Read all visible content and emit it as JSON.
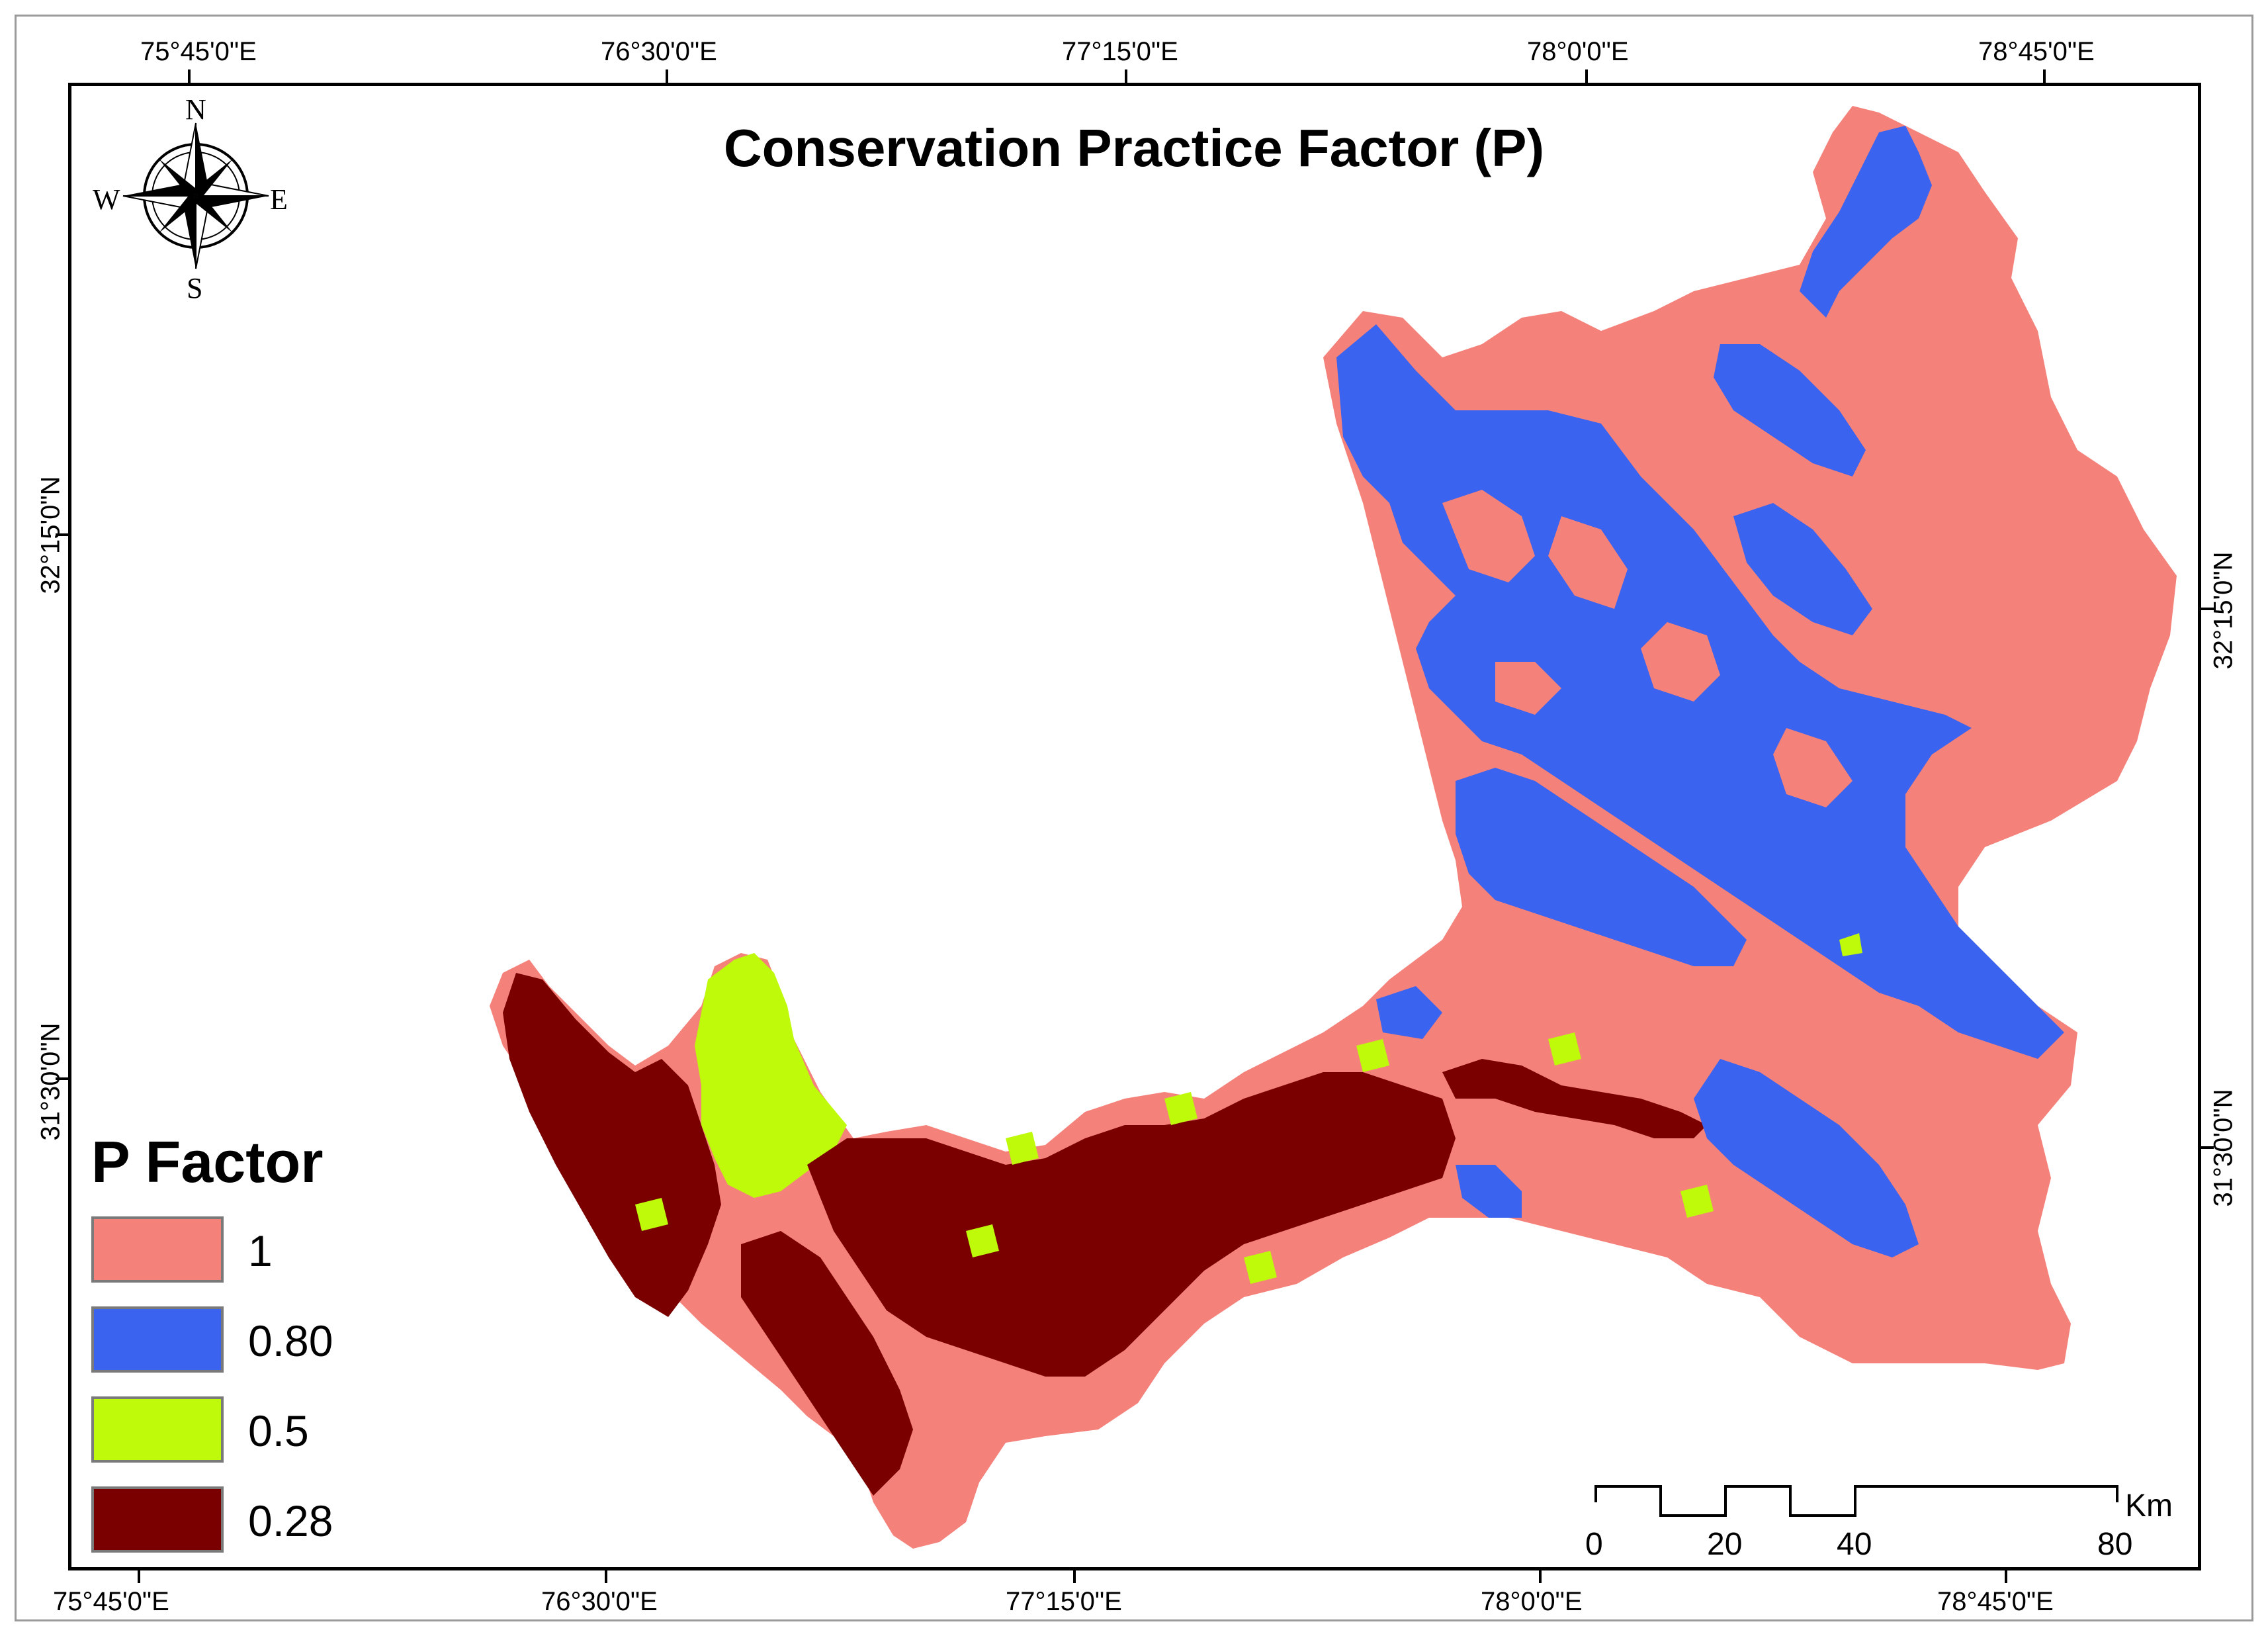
{
  "map": {
    "title": "Conservation Practice Factor (P)",
    "top_longitudes": [
      "75°45'0\"E",
      "76°30'0\"E",
      "77°15'0\"E",
      "78°0'0\"E",
      "78°45'0\"E"
    ],
    "bottom_longitudes": [
      "75°45'0\"E",
      "76°30'0\"E",
      "77°15'0\"E",
      "78°0'0\"E",
      "78°45'0\"E"
    ],
    "left_latitudes": [
      "32°15'0\"N",
      "31°30'0\"N"
    ],
    "right_latitudes": [
      "32°15'0\"N",
      "31°30'0\"N"
    ]
  },
  "compass": {
    "n": "N",
    "s": "S",
    "e": "E",
    "w": "W"
  },
  "legend": {
    "title": "P Factor",
    "items": [
      {
        "label": "1",
        "color": "#F4817A"
      },
      {
        "label": "0.80",
        "color": "#3A63F0"
      },
      {
        "label": "0.5",
        "color": "#BEFA0A"
      },
      {
        "label": "0.28",
        "color": "#7A0000"
      }
    ]
  },
  "scale_bar": {
    "unit": "Km",
    "labels": [
      "0",
      "20",
      "40",
      "80"
    ]
  }
}
